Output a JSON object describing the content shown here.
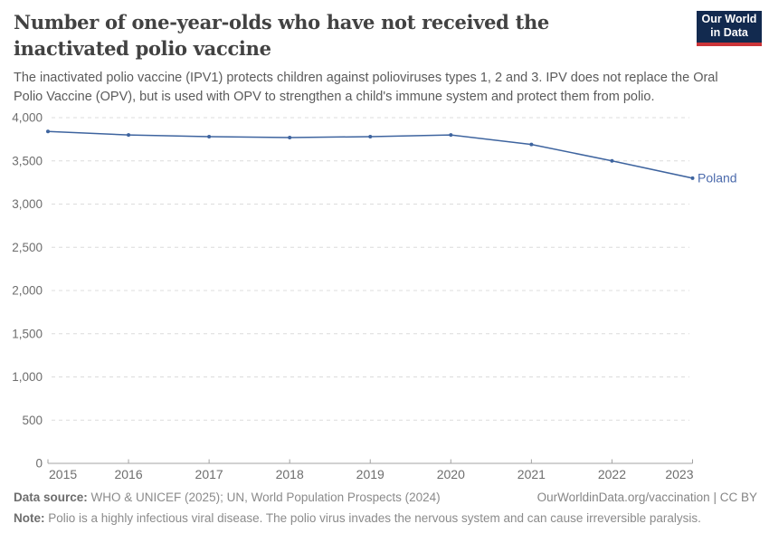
{
  "header": {
    "title": "Number of one-year-olds who have not received the inactivated polio vaccine",
    "subtitle": "The inactivated polio vaccine (IPV1) protects children against polioviruses types 1, 2 and 3. IPV does not replace the Oral Polio Vaccine (OPV), but is used with OPV to strengthen a child's immune system and protect them from polio.",
    "logo": {
      "line1": "Our World",
      "line2": "in Data",
      "bg": "#122a4f",
      "stripe": "#cb3438"
    }
  },
  "chart_data": {
    "type": "line",
    "title": "Number of one-year-olds who have not received the inactivated polio vaccine",
    "x": [
      2015,
      2016,
      2017,
      2018,
      2019,
      2020,
      2021,
      2022,
      2023
    ],
    "series": [
      {
        "name": "Poland",
        "values": [
          3840,
          3800,
          3780,
          3770,
          3780,
          3800,
          3690,
          3500,
          3300
        ]
      }
    ],
    "xlabel": "",
    "ylabel": "",
    "ylim": [
      0,
      4000
    ],
    "ytick_step": 500,
    "grid": "horizontal-dashed",
    "legend_position": "end-of-line",
    "line_color": "#3e649f",
    "point_color": "#3e649f",
    "entity_label_color": "#4c6bac",
    "grid_color": "#dcdcdc",
    "axis_color": "#a3a3a3",
    "tick_text_color": "#6e6e6e"
  },
  "footer": {
    "data_source_label": "Data source:",
    "data_source": "WHO & UNICEF (2025); UN, World Population Prospects (2024)",
    "link": "OurWorldinData.org/vaccination",
    "separator": "|",
    "license": "CC BY",
    "note_label": "Note:",
    "note": "Polio is a highly infectious viral disease. The polio virus invades the nervous system and can cause irreversible paralysis."
  }
}
